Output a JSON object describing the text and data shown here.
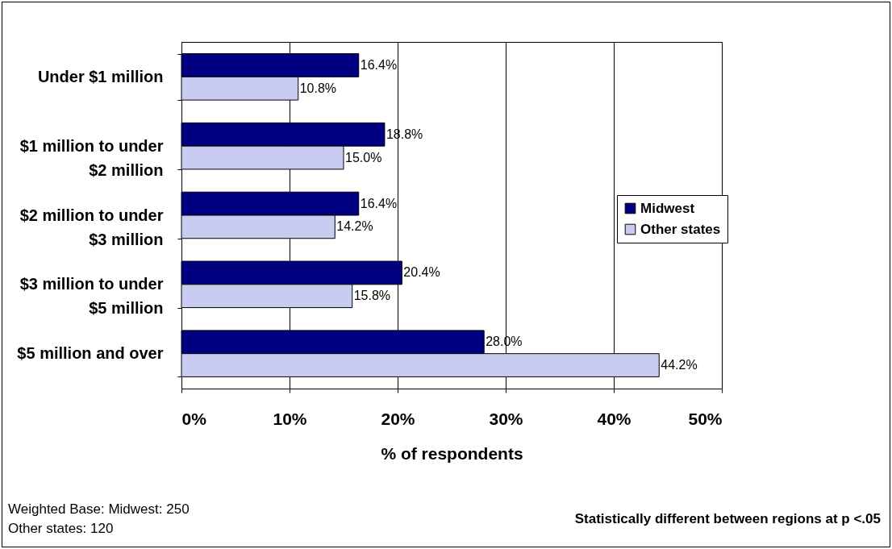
{
  "chart_data": {
    "type": "bar",
    "orientation": "horizontal",
    "xlabel": "% of respondents",
    "categories": [
      "Under $1 million",
      "$1 million to under $2 million",
      "$2 million to under $3 million",
      "$3 million to under $5 million",
      "$5 million and over"
    ],
    "series": [
      {
        "name": "Midwest",
        "color": "#000080",
        "values": [
          16.4,
          18.8,
          16.4,
          20.4,
          28.0
        ],
        "value_labels": [
          "16.4%",
          "18.8%",
          "16.4%",
          "20.4%",
          "28.0%"
        ]
      },
      {
        "name": "Other states",
        "color": "#c8ccf0",
        "values": [
          10.8,
          15.0,
          14.2,
          15.8,
          44.2
        ],
        "value_labels": [
          "10.8%",
          "15.0%",
          "14.2%",
          "15.8%",
          "44.2%"
        ]
      }
    ],
    "xlim": [
      0,
      50
    ],
    "xticks": [
      {
        "value": 0,
        "label": "0%"
      },
      {
        "value": 10,
        "label": "10%"
      },
      {
        "value": 20,
        "label": "20%"
      },
      {
        "value": 30,
        "label": "30%"
      },
      {
        "value": 40,
        "label": "40%"
      },
      {
        "value": 50,
        "label": "50%"
      }
    ],
    "grid": "x",
    "legend": "right",
    "annotations": [
      "Weighted Base: Midwest: 250",
      "Other states: 120",
      "Statistically different between regions at p <.05"
    ]
  }
}
